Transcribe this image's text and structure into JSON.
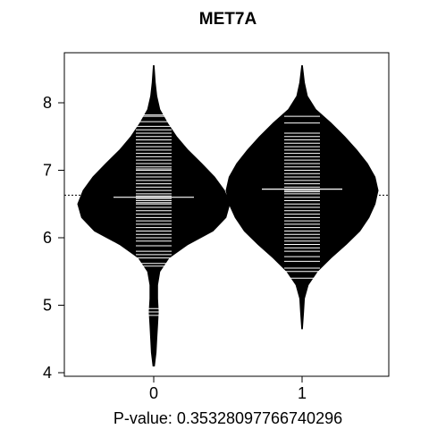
{
  "chart_data": {
    "type": "beanplot",
    "title": "MET7A",
    "xlabel": "P-value: 0.35328097766740296",
    "ylabel": "",
    "ylim": [
      4,
      8.6
    ],
    "yticks": [
      4,
      5,
      6,
      7,
      8
    ],
    "categories": [
      "0",
      "1"
    ],
    "overall_mean": 6.63,
    "groups": [
      {
        "category": "0",
        "mean": 6.6,
        "range": [
          4.1,
          8.55
        ],
        "density": [
          [
            4.1,
            0.01
          ],
          [
            4.3,
            0.03
          ],
          [
            4.5,
            0.04
          ],
          [
            4.7,
            0.05
          ],
          [
            4.9,
            0.06
          ],
          [
            5.1,
            0.05
          ],
          [
            5.3,
            0.05
          ],
          [
            5.5,
            0.08
          ],
          [
            5.7,
            0.2
          ],
          [
            5.9,
            0.45
          ],
          [
            6.1,
            0.78
          ],
          [
            6.3,
            0.95
          ],
          [
            6.5,
            1.0
          ],
          [
            6.7,
            0.93
          ],
          [
            6.9,
            0.8
          ],
          [
            7.1,
            0.63
          ],
          [
            7.3,
            0.45
          ],
          [
            7.5,
            0.3
          ],
          [
            7.7,
            0.18
          ],
          [
            7.9,
            0.08
          ],
          [
            8.1,
            0.04
          ],
          [
            8.3,
            0.02
          ],
          [
            8.55,
            0.005
          ]
        ],
        "observations": [
          4.85,
          4.9,
          4.95,
          5.58,
          5.62,
          5.7,
          5.75,
          5.8,
          5.88,
          5.95,
          6.0,
          6.05,
          6.1,
          6.15,
          6.2,
          6.25,
          6.3,
          6.35,
          6.4,
          6.45,
          6.5,
          6.52,
          6.55,
          6.58,
          6.6,
          6.62,
          6.65,
          6.7,
          6.75,
          6.8,
          6.85,
          6.9,
          6.95,
          7.0,
          7.02,
          7.05,
          7.1,
          7.15,
          7.2,
          7.25,
          7.3,
          7.35,
          7.4,
          7.45,
          7.5,
          7.55,
          7.6,
          7.65,
          7.72,
          7.8,
          7.82
        ]
      },
      {
        "category": "1",
        "mean": 6.72,
        "range": [
          4.65,
          8.55
        ],
        "density": [
          [
            4.65,
            0.005
          ],
          [
            4.9,
            0.02
          ],
          [
            5.1,
            0.03
          ],
          [
            5.3,
            0.08
          ],
          [
            5.5,
            0.2
          ],
          [
            5.7,
            0.38
          ],
          [
            5.9,
            0.58
          ],
          [
            6.1,
            0.76
          ],
          [
            6.3,
            0.88
          ],
          [
            6.5,
            0.96
          ],
          [
            6.7,
            1.0
          ],
          [
            6.9,
            0.96
          ],
          [
            7.1,
            0.86
          ],
          [
            7.3,
            0.72
          ],
          [
            7.5,
            0.56
          ],
          [
            7.7,
            0.38
          ],
          [
            7.9,
            0.18
          ],
          [
            8.1,
            0.07
          ],
          [
            8.3,
            0.03
          ],
          [
            8.55,
            0.005
          ]
        ],
        "observations": [
          5.4,
          5.5,
          5.55,
          5.65,
          5.72,
          5.8,
          5.85,
          5.9,
          5.95,
          6.0,
          6.05,
          6.1,
          6.15,
          6.2,
          6.25,
          6.3,
          6.35,
          6.4,
          6.45,
          6.5,
          6.55,
          6.6,
          6.65,
          6.68,
          6.7,
          6.72,
          6.75,
          6.8,
          6.85,
          6.9,
          6.95,
          7.0,
          7.05,
          7.1,
          7.15,
          7.2,
          7.25,
          7.3,
          7.35,
          7.4,
          7.45,
          7.5,
          7.55,
          7.7,
          7.8
        ]
      }
    ],
    "grid": false,
    "legend": "none"
  }
}
